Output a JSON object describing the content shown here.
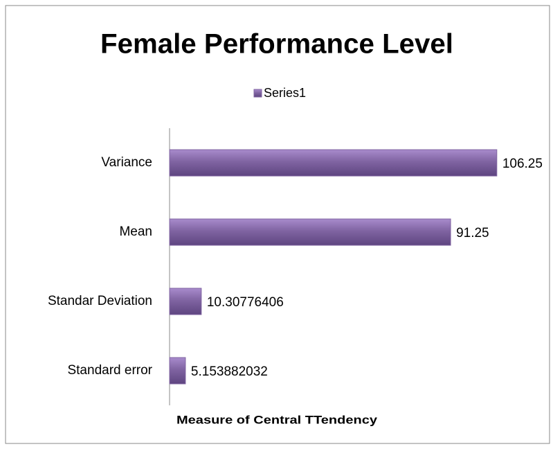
{
  "chart_data": {
    "type": "bar",
    "orientation": "horizontal",
    "title": "Female Performance Level",
    "x_label": "Measure of Central TTendency",
    "categories": [
      "Variance",
      "Mean",
      "Standar Deviation",
      "Standard error"
    ],
    "series": [
      {
        "name": "Series1",
        "color": "#8064a2",
        "values": [
          106.25,
          91.25,
          10.30776406,
          5.153882032
        ]
      }
    ],
    "xlim": [
      0,
      120
    ],
    "legend": "top"
  }
}
